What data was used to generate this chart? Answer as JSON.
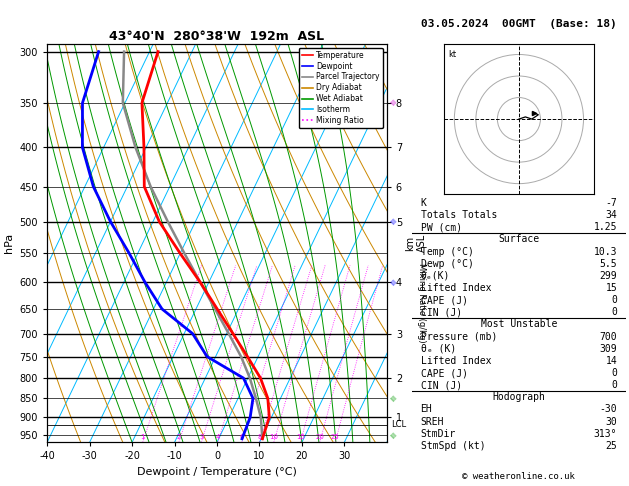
{
  "title_left": "43°40'N  280°38'W  192m  ASL",
  "title_right": "03.05.2024  00GMT  (Base: 18)",
  "xlabel": "Dewpoint / Temperature (°C)",
  "ylabel_left": "hPa",
  "background_color": "#ffffff",
  "temperature_profile": {
    "temps": [
      10.3,
      9.5,
      7.0,
      3.0,
      -2.5,
      -8.5,
      -15.0,
      -22.0,
      -30.0,
      -38.5,
      -46.0,
      -50.5,
      -56.0,
      -58.0
    ],
    "pressures": [
      960,
      900,
      850,
      800,
      750,
      700,
      650,
      600,
      550,
      500,
      450,
      400,
      350,
      300
    ],
    "color": "#ff0000",
    "linewidth": 2.0
  },
  "dewpoint_profile": {
    "temps": [
      5.5,
      5.0,
      3.5,
      -1.0,
      -12.0,
      -18.0,
      -28.0,
      -35.0,
      -42.0,
      -50.0,
      -58.0,
      -65.0,
      -70.0,
      -72.0
    ],
    "pressures": [
      960,
      900,
      850,
      800,
      750,
      700,
      650,
      600,
      550,
      500,
      450,
      400,
      350,
      300
    ],
    "color": "#0000ff",
    "linewidth": 2.0
  },
  "parcel_trajectory": {
    "temps": [
      10.3,
      7.5,
      4.2,
      0.5,
      -4.0,
      -9.5,
      -15.5,
      -22.0,
      -29.0,
      -36.5,
      -44.5,
      -52.5,
      -60.5,
      -66.0
    ],
    "pressures": [
      960,
      900,
      850,
      800,
      750,
      700,
      650,
      600,
      550,
      500,
      450,
      400,
      350,
      300
    ],
    "color": "#888888",
    "linewidth": 1.8
  },
  "lcl_pressure": 920,
  "lcl_label": "LCL",
  "isotherm_color": "#00bbff",
  "dry_adiabat_color": "#cc8800",
  "wet_adiabat_color": "#009900",
  "mixing_ratio_color": "#ff00ff",
  "mixing_ratio_values": [
    1,
    2,
    3,
    4,
    6,
    8,
    10,
    15,
    20,
    25
  ],
  "km_ticks": [
    1,
    2,
    3,
    4,
    5,
    6,
    7,
    8
  ],
  "km_pressures": [
    900,
    800,
    700,
    600,
    500,
    450,
    400,
    350
  ],
  "info_K": -7,
  "info_TT": 34,
  "info_PW": 1.25,
  "surface_temp": 10.3,
  "surface_dewp": 5.5,
  "surface_thetae": 299,
  "surface_li": 15,
  "surface_cape": 0,
  "surface_cin": 0,
  "mu_pressure": 700,
  "mu_thetae": 309,
  "mu_li": 14,
  "mu_cape": 0,
  "mu_cin": 0,
  "hodo_EH": -30,
  "hodo_SREH": 30,
  "hodo_StmDir": "313°",
  "hodo_StmSpd": 25,
  "legend_items": [
    {
      "label": "Temperature",
      "color": "#ff0000",
      "ls": "-"
    },
    {
      "label": "Dewpoint",
      "color": "#0000ff",
      "ls": "-"
    },
    {
      "label": "Parcel Trajectory",
      "color": "#888888",
      "ls": "-"
    },
    {
      "label": "Dry Adiabat",
      "color": "#cc8800",
      "ls": "-"
    },
    {
      "label": "Wet Adiabat",
      "color": "#009900",
      "ls": "-"
    },
    {
      "label": "Isotherm",
      "color": "#00bbff",
      "ls": "-"
    },
    {
      "label": "Mixing Ratio",
      "color": "#ff00ff",
      "ls": ":"
    }
  ],
  "footer": "© weatheronline.co.uk",
  "wind_barb_data": [
    {
      "pressure": 350,
      "color": "#cc00cc"
    },
    {
      "pressure": 500,
      "color": "#0000ff"
    },
    {
      "pressure": 600,
      "color": "#0000ff"
    },
    {
      "pressure": 850,
      "color": "#009900"
    },
    {
      "pressure": 950,
      "color": "#009900"
    }
  ]
}
